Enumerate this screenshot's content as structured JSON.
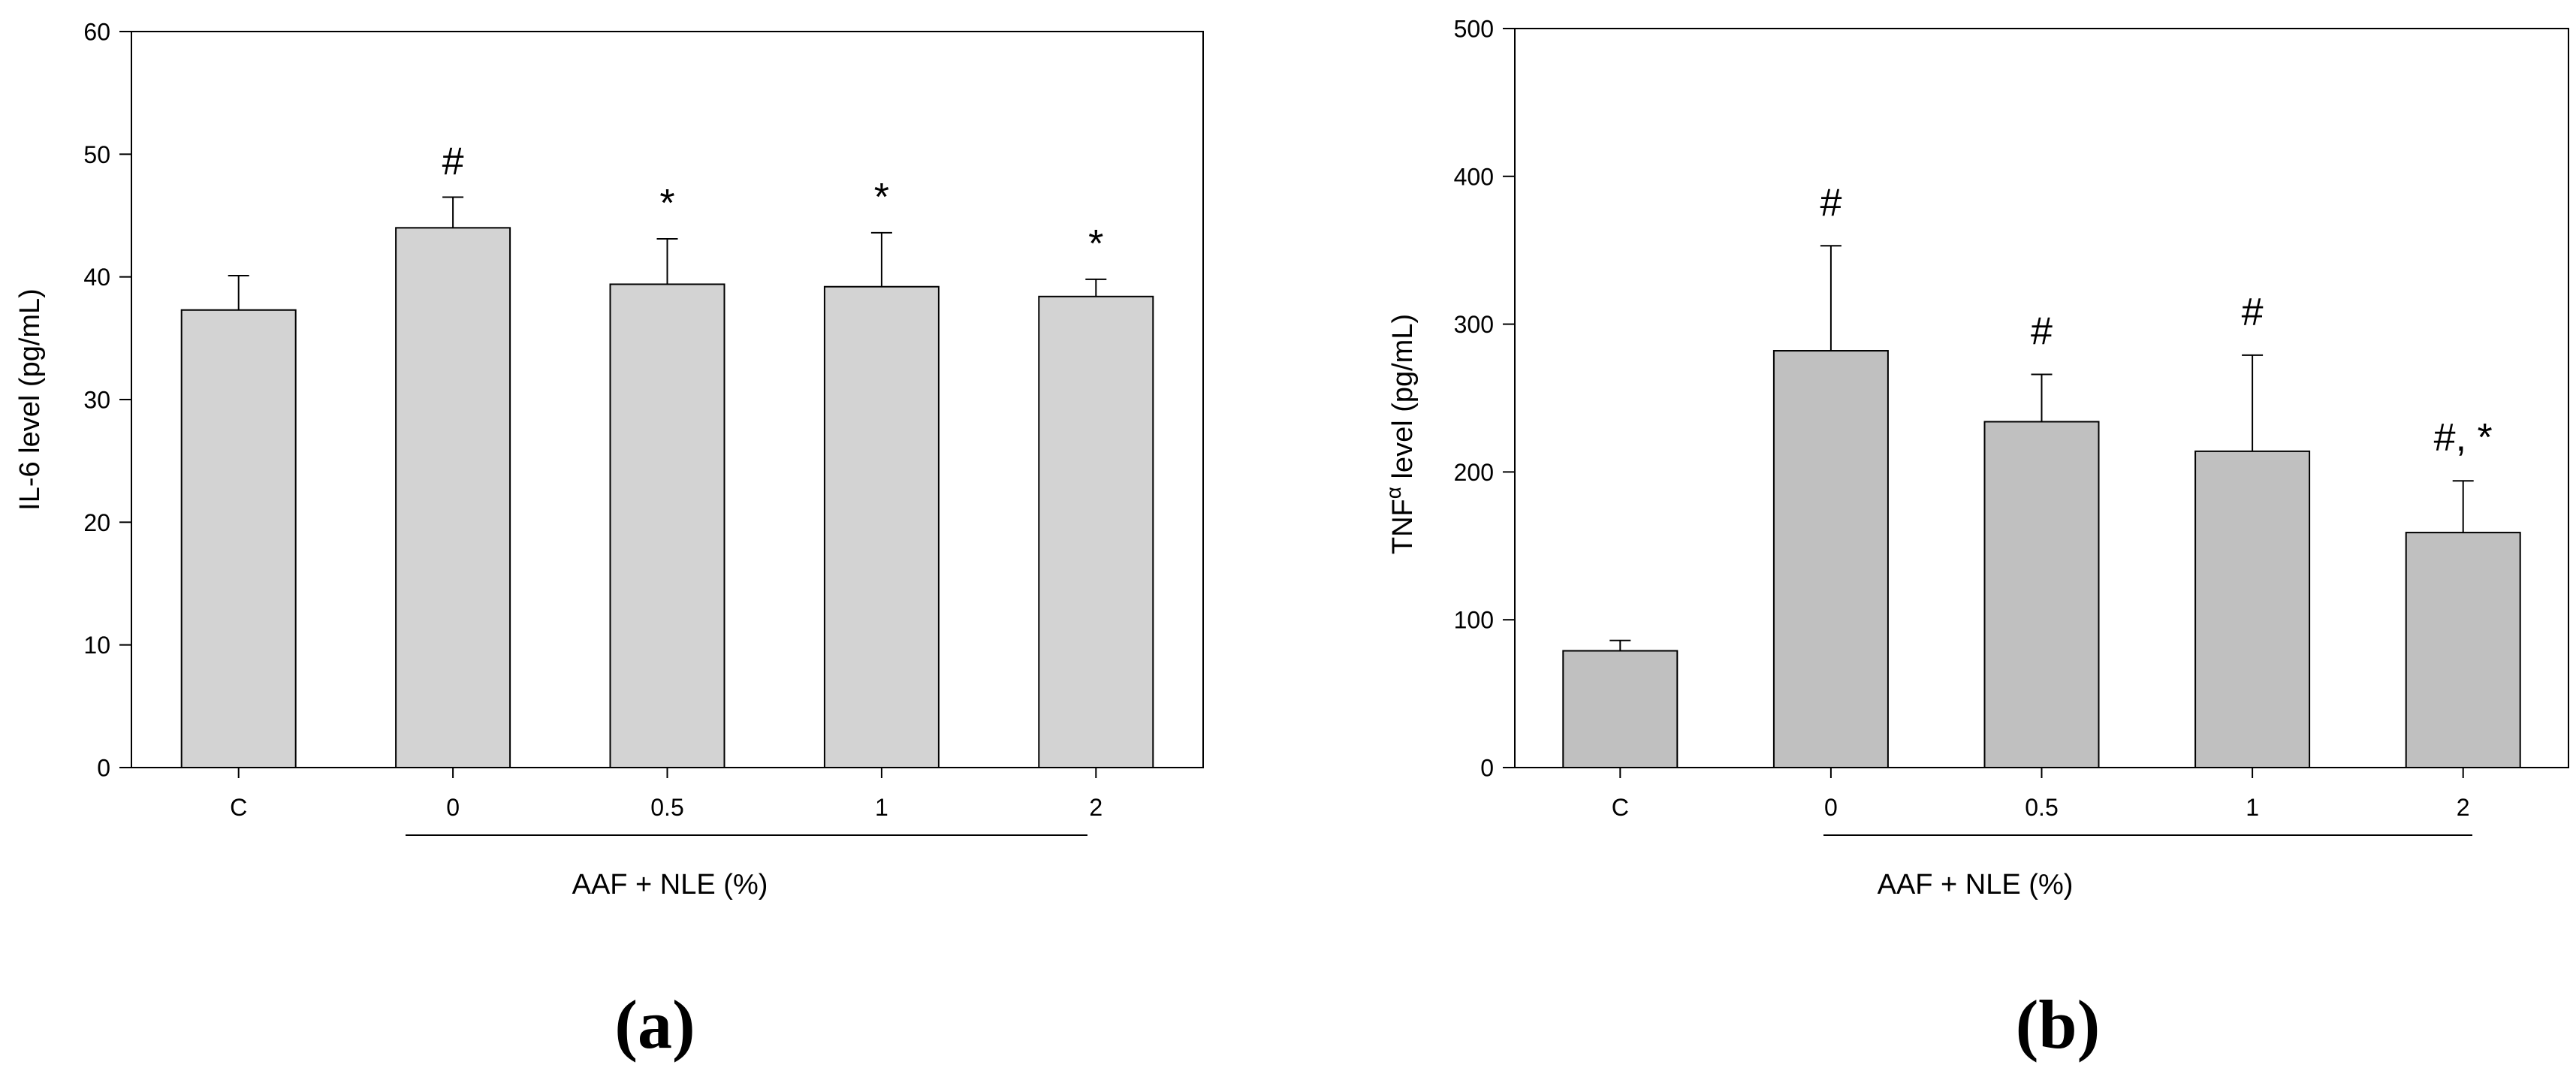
{
  "chart_data": [
    {
      "type": "bar",
      "panel_label": "(a)",
      "categories": [
        "C",
        "0",
        "0.5",
        "1",
        "2"
      ],
      "values": [
        37.3,
        44.0,
        39.4,
        39.2,
        38.4
      ],
      "error_upper": [
        40.1,
        46.5,
        43.1,
        43.6,
        39.8
      ],
      "annotations": [
        "",
        "#",
        "*",
        "*",
        "*"
      ],
      "ylabel": "IL-6 level (pg/mL)",
      "xlabel": "AAF + NLE (%)",
      "ylim": [
        0,
        60
      ],
      "yticks": [
        0,
        10,
        20,
        30,
        40,
        50,
        60
      ],
      "bar_color": "#d3d3d3",
      "grid": false,
      "legend": "none"
    },
    {
      "type": "bar",
      "panel_label": "(b)",
      "categories": [
        "C",
        "0",
        "0.5",
        "1",
        "2"
      ],
      "values": [
        79,
        282,
        234,
        214,
        159
      ],
      "error_upper": [
        86,
        353,
        266,
        279,
        194
      ],
      "annotations": [
        "",
        "#",
        "#",
        "#",
        "#, *"
      ],
      "ylabel": "TNF level (pg/mL)",
      "ylabel_parts": {
        "before": "TNF",
        "superscript": "α",
        "after": " level (pg/mL)"
      },
      "xlabel": "AAF + NLE (%)",
      "ylim": [
        0,
        500
      ],
      "yticks": [
        0,
        100,
        200,
        300,
        400,
        500
      ],
      "bar_color": "#c0c0c0",
      "grid": false,
      "legend": "none"
    }
  ]
}
